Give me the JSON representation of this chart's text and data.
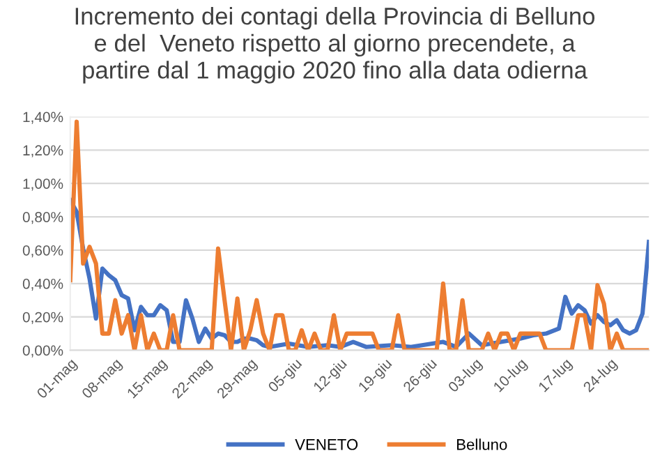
{
  "chart_data": {
    "type": "line",
    "title": "Incremento dei contagi della Provincia di Belluno\ne del  Veneto rispetto al giorno precendete, a\npartire dal 1 maggio 2020 fino alla data odierna",
    "series": [
      {
        "name": "VENETO",
        "color": "#4472c4",
        "x": [
          "2020-05-01",
          "2020-05-02",
          "2020-05-03",
          "2020-05-04",
          "2020-05-05",
          "2020-05-06",
          "2020-05-07",
          "2020-05-08",
          "2020-05-09",
          "2020-05-10",
          "2020-05-11",
          "2020-05-12",
          "2020-05-13",
          "2020-05-14",
          "2020-05-15",
          "2020-05-16",
          "2020-05-17",
          "2020-05-18",
          "2020-05-19",
          "2020-05-20",
          "2020-05-21",
          "2020-05-22",
          "2020-05-23",
          "2020-05-24",
          "2020-05-25",
          "2020-05-26",
          "2020-05-27",
          "2020-05-28",
          "2020-05-29",
          "2020-05-30",
          "2020-05-31",
          "2020-06-01",
          "2020-06-04",
          "2020-06-07",
          "2020-06-10",
          "2020-06-12",
          "2020-06-14",
          "2020-06-16",
          "2020-06-20",
          "2020-06-23",
          "2020-06-28",
          "2020-06-30",
          "2020-07-02",
          "2020-07-04",
          "2020-07-07",
          "2020-07-10",
          "2020-07-12",
          "2020-07-14",
          "2020-07-16",
          "2020-07-17",
          "2020-07-18",
          "2020-07-19",
          "2020-07-20",
          "2020-07-21",
          "2020-07-22",
          "2020-07-23",
          "2020-07-24",
          "2020-07-25",
          "2020-07-26",
          "2020-07-27",
          "2020-07-28",
          "2020-07-29",
          "2020-07-30"
        ],
        "values": [
          0.9,
          0.83,
          0.61,
          0.43,
          0.19,
          0.49,
          0.45,
          0.42,
          0.33,
          0.31,
          0.12,
          0.26,
          0.21,
          0.21,
          0.27,
          0.24,
          0.05,
          0.05,
          0.3,
          0.19,
          0.05,
          0.13,
          0.07,
          0.1,
          0.09,
          0.05,
          0.05,
          0.07,
          0.07,
          0.06,
          0.03,
          0.02,
          0.04,
          0.02,
          0.03,
          0.02,
          0.05,
          0.02,
          0.03,
          0.02,
          0.05,
          0.02,
          0.1,
          0.03,
          0.05,
          0.07,
          0.09,
          0.1,
          0.13,
          0.32,
          0.22,
          0.27,
          0.24,
          0.16,
          0.21,
          0.17,
          0.15,
          0.18,
          0.12,
          0.1,
          0.12,
          0.22,
          0.65
        ]
      },
      {
        "name": "Belluno",
        "color": "#ed7d31",
        "x": [
          "2020-05-01",
          "2020-05-02",
          "2020-05-03",
          "2020-05-04",
          "2020-05-05",
          "2020-05-06",
          "2020-05-07",
          "2020-05-08",
          "2020-05-09",
          "2020-05-10",
          "2020-05-11",
          "2020-05-12",
          "2020-05-13",
          "2020-05-14",
          "2020-05-15",
          "2020-05-16",
          "2020-05-17",
          "2020-05-18",
          "2020-05-23",
          "2020-05-24",
          "2020-05-25",
          "2020-05-26",
          "2020-05-27",
          "2020-05-28",
          "2020-05-29",
          "2020-05-30",
          "2020-05-31",
          "2020-06-01",
          "2020-06-02",
          "2020-06-03",
          "2020-06-04",
          "2020-06-05",
          "2020-06-06",
          "2020-06-07",
          "2020-06-08",
          "2020-06-09",
          "2020-06-10",
          "2020-06-11",
          "2020-06-12",
          "2020-06-13",
          "2020-06-17",
          "2020-06-18",
          "2020-06-20",
          "2020-06-21",
          "2020-06-22",
          "2020-06-27",
          "2020-06-28",
          "2020-06-29",
          "2020-06-30",
          "2020-07-01",
          "2020-07-02",
          "2020-07-04",
          "2020-07-05",
          "2020-07-06",
          "2020-07-07",
          "2020-07-08",
          "2020-07-09",
          "2020-07-10",
          "2020-07-13",
          "2020-07-14",
          "2020-07-18",
          "2020-07-19",
          "2020-07-20",
          "2020-07-21",
          "2020-07-22",
          "2020-07-23",
          "2020-07-24",
          "2020-07-25",
          "2020-07-26",
          "2020-07-30"
        ],
        "values": [
          0.42,
          1.37,
          0.52,
          0.62,
          0.52,
          0.1,
          0.1,
          0.3,
          0.1,
          0.21,
          0,
          0.21,
          0,
          0.1,
          0,
          0,
          0.21,
          0,
          0,
          0.61,
          0.3,
          0,
          0.31,
          0,
          0.12,
          0.3,
          0.1,
          0,
          0.21,
          0.21,
          0,
          0,
          0.12,
          0,
          0.1,
          0,
          0,
          0.21,
          0,
          0.1,
          0.1,
          0,
          0,
          0.21,
          0,
          0,
          0.4,
          0,
          0,
          0.3,
          0,
          0,
          0.1,
          0,
          0.1,
          0.1,
          0,
          0.1,
          0.1,
          0,
          0,
          0.21,
          0.21,
          0,
          0.39,
          0.28,
          0,
          0.1,
          0,
          0
        ]
      }
    ],
    "xlim": [
      "2020-05-01",
      "2020-07-30"
    ],
    "xticks": [
      {
        "value": "2020-05-01",
        "label": "01-mag"
      },
      {
        "value": "2020-05-08",
        "label": "08-mag"
      },
      {
        "value": "2020-05-15",
        "label": "15-mag"
      },
      {
        "value": "2020-05-22",
        "label": "22-mag"
      },
      {
        "value": "2020-05-29",
        "label": "29-mag"
      },
      {
        "value": "2020-06-05",
        "label": "05-giu"
      },
      {
        "value": "2020-06-12",
        "label": "12-giu"
      },
      {
        "value": "2020-06-19",
        "label": "19-giu"
      },
      {
        "value": "2020-06-26",
        "label": "26-giu"
      },
      {
        "value": "2020-07-03",
        "label": "03-lug"
      },
      {
        "value": "2020-07-10",
        "label": "10-lug"
      },
      {
        "value": "2020-07-17",
        "label": "17-lug"
      },
      {
        "value": "2020-07-24",
        "label": "24-lug"
      }
    ],
    "ylim": [
      0,
      1.4
    ],
    "yticks": [
      {
        "value": 0,
        "label": "0,00%"
      },
      {
        "value": 0.2,
        "label": "0,20%"
      },
      {
        "value": 0.4,
        "label": "0,40%"
      },
      {
        "value": 0.6,
        "label": "0,60%"
      },
      {
        "value": 0.8,
        "label": "0,80%"
      },
      {
        "value": 1.0,
        "label": "1,00%"
      },
      {
        "value": 1.2,
        "label": "1,20%"
      },
      {
        "value": 1.4,
        "label": "1,40%"
      }
    ],
    "grid": "y",
    "legend": "bottom",
    "marker": "none",
    "line_style": "solid"
  }
}
